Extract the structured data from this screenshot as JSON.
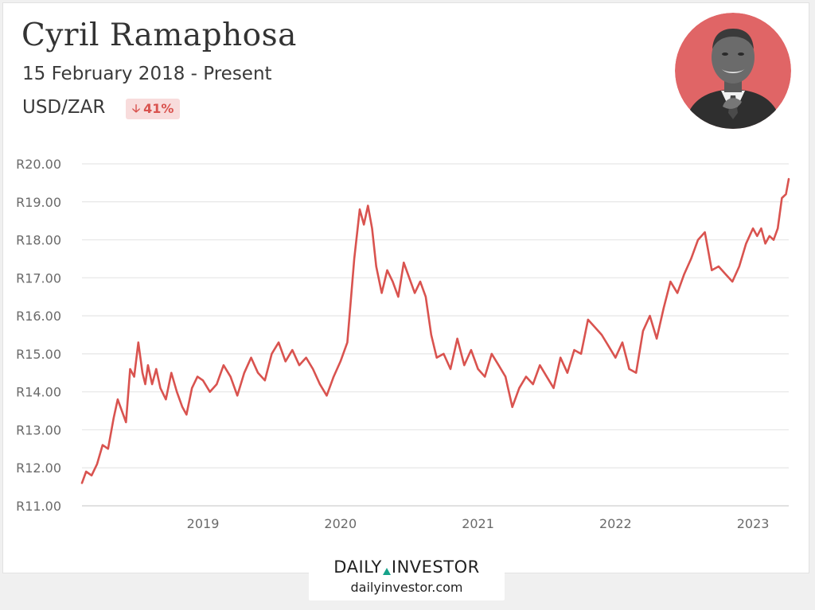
{
  "header": {
    "title": "Cyril Ramaphosa",
    "subtitle": "15 February 2018 - Present",
    "pair": "USD/ZAR",
    "change": "41%"
  },
  "footer": {
    "brand_left": "DAILY",
    "brand_right": "INVESTOR",
    "domain": "dailyinvestor.com"
  },
  "colors": {
    "line": "#d9534f",
    "avatar_bg": "#e06566",
    "badge_bg": "#f8dcdc",
    "brand_accent": "#16a38a"
  },
  "icons": {
    "badge": "arrow-down-icon",
    "avatar": "portrait-photo"
  },
  "chart_data": {
    "type": "line",
    "title": "Cyril Ramaphosa",
    "ylabel": "",
    "xlabel": "",
    "ylim": [
      11,
      20
    ],
    "y_ticks": [
      11,
      12,
      13,
      14,
      15,
      16,
      17,
      18,
      19,
      20
    ],
    "y_tick_labels": [
      "R11.00",
      "R12.00",
      "R13.00",
      "R14.00",
      "R15.00",
      "R16.00",
      "R17.00",
      "R18.00",
      "R19.00",
      "R20.00"
    ],
    "x_ticks": [
      2019,
      2020,
      2021,
      2022,
      2023
    ],
    "x_tick_labels": [
      "2019",
      "2020",
      "2021",
      "2022",
      "2023"
    ],
    "xlim": [
      2018.12,
      2023.26
    ],
    "grid": "horizontal",
    "series": [
      {
        "name": "",
        "x": [
          2018.12,
          2018.15,
          2018.19,
          2018.23,
          2018.27,
          2018.31,
          2018.35,
          2018.38,
          2018.41,
          2018.44,
          2018.47,
          2018.5,
          2018.53,
          2018.56,
          2018.58,
          2018.6,
          2018.63,
          2018.66,
          2018.69,
          2018.73,
          2018.77,
          2018.81,
          2018.85,
          2018.88,
          2018.92,
          2018.96,
          2019.0,
          2019.05,
          2019.1,
          2019.15,
          2019.2,
          2019.25,
          2019.3,
          2019.35,
          2019.4,
          2019.45,
          2019.5,
          2019.55,
          2019.6,
          2019.65,
          2019.7,
          2019.75,
          2019.8,
          2019.85,
          2019.9,
          2019.95,
          2020.0,
          2020.05,
          2020.1,
          2020.14,
          2020.17,
          2020.2,
          2020.23,
          2020.26,
          2020.3,
          2020.34,
          2020.38,
          2020.42,
          2020.46,
          2020.5,
          2020.54,
          2020.58,
          2020.62,
          2020.66,
          2020.7,
          2020.75,
          2020.8,
          2020.85,
          2020.9,
          2020.95,
          2021.0,
          2021.05,
          2021.1,
          2021.15,
          2021.2,
          2021.25,
          2021.3,
          2021.35,
          2021.4,
          2021.45,
          2021.5,
          2021.55,
          2021.6,
          2021.65,
          2021.7,
          2021.75,
          2021.8,
          2021.85,
          2021.9,
          2021.95,
          2022.0,
          2022.05,
          2022.1,
          2022.15,
          2022.2,
          2022.25,
          2022.3,
          2022.35,
          2022.4,
          2022.45,
          2022.5,
          2022.55,
          2022.6,
          2022.65,
          2022.7,
          2022.75,
          2022.8,
          2022.85,
          2022.9,
          2022.95,
          2023.0,
          2023.03,
          2023.06,
          2023.09,
          2023.12,
          2023.15,
          2023.18,
          2023.21,
          2023.24,
          2023.26
        ],
        "values": [
          11.6,
          11.9,
          11.8,
          12.1,
          12.6,
          12.5,
          13.3,
          13.8,
          13.5,
          13.2,
          14.6,
          14.4,
          15.3,
          14.5,
          14.2,
          14.7,
          14.2,
          14.6,
          14.1,
          13.8,
          14.5,
          14.0,
          13.6,
          13.4,
          14.1,
          14.4,
          14.3,
          14.0,
          14.2,
          14.7,
          14.4,
          13.9,
          14.5,
          14.9,
          14.5,
          14.3,
          15.0,
          15.3,
          14.8,
          15.1,
          14.7,
          14.9,
          14.6,
          14.2,
          13.9,
          14.4,
          14.8,
          15.3,
          17.5,
          18.8,
          18.4,
          18.9,
          18.3,
          17.3,
          16.6,
          17.2,
          16.9,
          16.5,
          17.4,
          17.0,
          16.6,
          16.9,
          16.5,
          15.5,
          14.9,
          15.0,
          14.6,
          15.4,
          14.7,
          15.1,
          14.6,
          14.4,
          15.0,
          14.7,
          14.4,
          13.6,
          14.1,
          14.4,
          14.2,
          14.7,
          14.4,
          14.1,
          14.9,
          14.5,
          15.1,
          15.0,
          15.9,
          15.7,
          15.5,
          15.2,
          14.9,
          15.3,
          14.6,
          14.5,
          15.6,
          16.0,
          15.4,
          16.2,
          16.9,
          16.6,
          17.1,
          17.5,
          18.0,
          18.2,
          17.2,
          17.3,
          17.1,
          16.9,
          17.3,
          17.9,
          18.3,
          18.1,
          18.3,
          17.9,
          18.1,
          18.0,
          18.3,
          19.1,
          19.2,
          19.6
        ]
      }
    ]
  }
}
